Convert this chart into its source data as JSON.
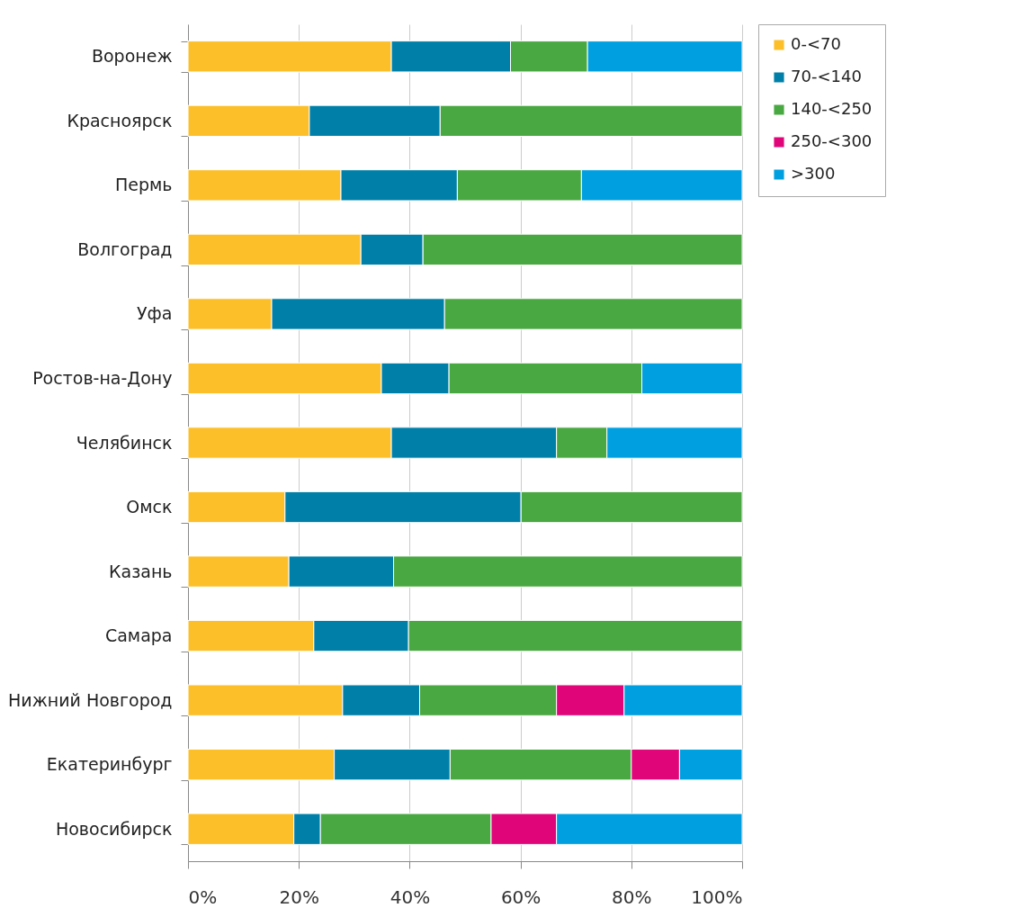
{
  "chart_data": {
    "type": "bar",
    "orientation": "horizontal",
    "stacked": true,
    "categories": [
      "Воронеж",
      "Красноярск",
      "Пермь",
      "Волгоград",
      "Уфа",
      "Ростов-на-Дону",
      "Челябинск",
      "Омск",
      "Казань",
      "Самара",
      "Нижний Новгород",
      "Екатеринбург",
      "Новосибирск"
    ],
    "series": [
      {
        "name": "0-<70",
        "color": "#fcbf29",
        "values": [
          36.7,
          21.9,
          27.6,
          31.2,
          15.1,
          34.9,
          36.7,
          17.5,
          18.2,
          22.7,
          27.9,
          26.4,
          19.1
        ]
      },
      {
        "name": "70-<140",
        "color": "#0080a8",
        "values": [
          21.5,
          23.6,
          21.0,
          11.2,
          31.2,
          12.2,
          29.8,
          42.6,
          18.9,
          17.1,
          13.9,
          20.9,
          4.8
        ]
      },
      {
        "name": "140-<250",
        "color": "#4aa842",
        "values": [
          13.9,
          54.5,
          22.4,
          57.6,
          53.7,
          34.8,
          9.1,
          39.9,
          62.9,
          60.2,
          24.7,
          32.7,
          30.8
        ]
      },
      {
        "name": "250-<300",
        "color": "#e0067a",
        "values": [
          null,
          null,
          null,
          null,
          null,
          null,
          null,
          null,
          null,
          null,
          12.2,
          8.7,
          11.8
        ]
      },
      {
        "name": ">300",
        "color": "#00a0e0",
        "values": [
          27.9,
          null,
          29.0,
          null,
          null,
          18.1,
          24.4,
          null,
          null,
          null,
          21.3,
          11.3,
          33.5
        ]
      }
    ],
    "xlim": [
      0,
      100
    ],
    "xticks": [
      {
        "value": 0,
        "label": "0%"
      },
      {
        "value": 20,
        "label": "20%"
      },
      {
        "value": 40,
        "label": "40%"
      },
      {
        "value": 60,
        "label": "60%"
      },
      {
        "value": 80,
        "label": "80%"
      },
      {
        "value": 100,
        "label": "100%"
      }
    ],
    "grid": "x",
    "legend": "right"
  }
}
